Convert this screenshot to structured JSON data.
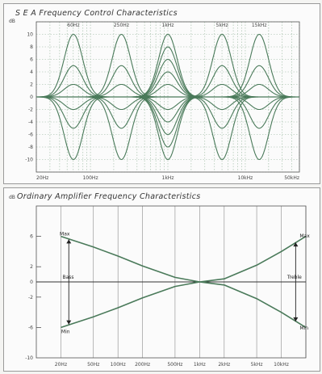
{
  "chart_data": [
    {
      "type": "line",
      "title": "S E A  Frequency Control Characteristics",
      "ylabel": "dB",
      "ylim": [
        -12,
        12
      ],
      "yticks": [
        "10",
        "8",
        "6",
        "4",
        "2",
        "0",
        "-2",
        "-4",
        "-6",
        "-8",
        "-10"
      ],
      "xticks": [
        "20Hz",
        "100Hz",
        "1kHz",
        "10kHz",
        "50kHz"
      ],
      "band_labels": [
        "60Hz",
        "250Hz",
        "1kHz",
        "5kHz",
        "15kHz"
      ],
      "bands": [
        {
          "name": "60Hz",
          "center_log": 1.78,
          "boost_levels": [
            10,
            5,
            2
          ],
          "cut_levels": [
            -10,
            -5,
            -2
          ]
        },
        {
          "name": "250Hz",
          "center_log": 2.4,
          "boost_levels": [
            10,
            5,
            2
          ],
          "cut_levels": [
            -10,
            -5,
            -2
          ]
        },
        {
          "name": "1kHz",
          "center_log": 3.0,
          "boost_levels": [
            10,
            8,
            6,
            4,
            2
          ],
          "cut_levels": [
            -10,
            -8,
            -6,
            -4,
            -2
          ]
        },
        {
          "name": "5kHz",
          "center_log": 3.7,
          "boost_levels": [
            10,
            5,
            2
          ],
          "cut_levels": [
            -10,
            -5,
            -2
          ]
        },
        {
          "name": "15kHz",
          "center_log": 4.18,
          "boost_levels": [
            10,
            5,
            2
          ],
          "cut_levels": [
            -10,
            -5,
            -2
          ]
        }
      ]
    },
    {
      "type": "line",
      "title": "Ordinary Amplifier Frequency Characteristics",
      "ylabel": "dB",
      "ylim": [
        -10,
        10
      ],
      "yticks": [
        "6",
        "2",
        "0",
        "-2",
        "-6",
        "-10"
      ],
      "xticks": [
        "20Hz",
        "50Hz",
        "100Hz",
        "200Hz",
        "500Hz",
        "1kHz",
        "2kHz",
        "5kHz",
        "10kHz"
      ],
      "annotations": [
        "Max",
        "Min",
        "Bass",
        "Treble",
        "Max",
        "Min"
      ],
      "series": [
        {
          "x": [
            20,
            50,
            100,
            200,
            500,
            1000,
            2000,
            5000,
            10000,
            20000
          ],
          "y": [
            6,
            4.6,
            3.4,
            2.1,
            0.6,
            0,
            0.4,
            2.2,
            4.0,
            6
          ]
        },
        {
          "x": [
            20,
            50,
            100,
            200,
            500,
            1000,
            2000,
            5000,
            10000,
            20000
          ],
          "y": [
            -6,
            -4.6,
            -3.4,
            -2.1,
            -0.6,
            0,
            -0.4,
            -2.2,
            -4.0,
            -6
          ]
        }
      ]
    }
  ],
  "colors": {
    "curve": "#4a7a5a",
    "grid": "#9ab89f",
    "axis": "#555555",
    "ink": "#222222"
  }
}
